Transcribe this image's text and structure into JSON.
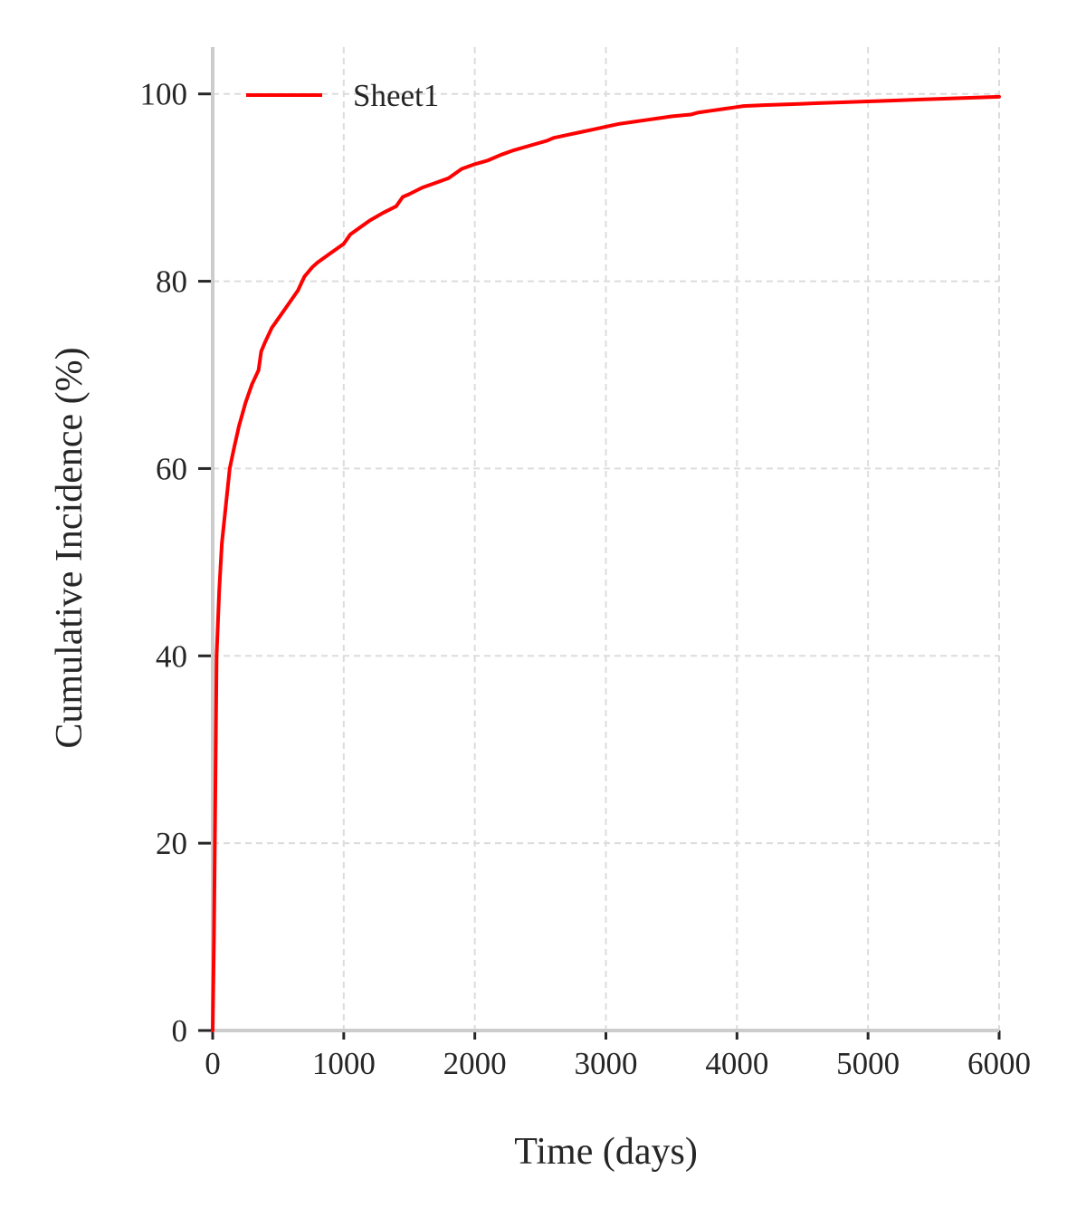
{
  "chart_data": {
    "type": "line",
    "title": "",
    "xlabel": "Time (days)",
    "ylabel": "Cumulative Incidence (%)",
    "xlim": [
      0,
      6000
    ],
    "ylim": [
      0,
      105
    ],
    "xticks": [
      "0",
      "1000",
      "2000",
      "3000",
      "4000",
      "5000",
      "6000"
    ],
    "yticks": [
      "0",
      "20",
      "40",
      "60",
      "80",
      "100"
    ],
    "grid": true,
    "legend": "top-left",
    "series": [
      {
        "name": "Sheet1",
        "color": "#ff0000",
        "x": [
          0,
          10,
          20,
          30,
          50,
          70,
          100,
          130,
          160,
          200,
          250,
          300,
          350,
          370,
          400,
          450,
          500,
          550,
          600,
          650,
          700,
          730,
          760,
          800,
          900,
          1000,
          1050,
          1100,
          1200,
          1300,
          1400,
          1450,
          1500,
          1600,
          1700,
          1800,
          1850,
          1900,
          2000,
          2100,
          2200,
          2300,
          2400,
          2500,
          2550,
          2600,
          2700,
          2800,
          2900,
          3000,
          3100,
          3200,
          3300,
          3400,
          3500,
          3650,
          3700,
          3800,
          3900,
          4000,
          4050,
          4200,
          4400,
          4600,
          4800,
          5000,
          5200,
          5400,
          5600,
          5800,
          6000
        ],
        "values": [
          0,
          10,
          25,
          40,
          47,
          52,
          56,
          60,
          62,
          64.5,
          67,
          69,
          70.5,
          72.5,
          73.5,
          75,
          76,
          77,
          78,
          79,
          80.5,
          81,
          81.5,
          82,
          83,
          84,
          85,
          85.5,
          86.5,
          87.3,
          88,
          89,
          89.3,
          90,
          90.5,
          91,
          91.5,
          92,
          92.5,
          92.9,
          93.5,
          94,
          94.4,
          94.8,
          95,
          95.3,
          95.6,
          95.9,
          96.2,
          96.5,
          96.8,
          97,
          97.2,
          97.4,
          97.6,
          97.8,
          98,
          98.2,
          98.4,
          98.6,
          98.7,
          98.8,
          98.9,
          99.0,
          99.1,
          99.2,
          99.3,
          99.4,
          99.5,
          99.6,
          99.7
        ]
      }
    ]
  }
}
